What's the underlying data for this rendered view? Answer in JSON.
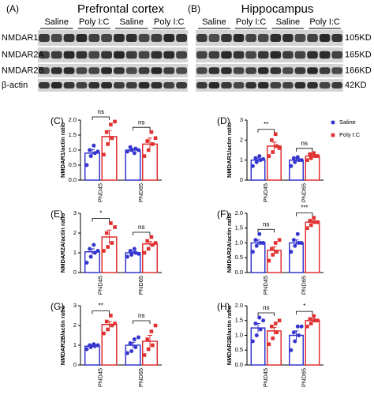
{
  "blot": {
    "panels": [
      {
        "label": "(A)",
        "title": "Prefrontal cortex",
        "groups": [
          "Saline",
          "Poly I:C",
          "Saline",
          "Poly I:C"
        ]
      },
      {
        "label": "(B)",
        "title": "Hippocampus",
        "groups": [
          "Saline",
          "Poly I:C",
          "Saline",
          "Poly I:C"
        ]
      }
    ],
    "proteins": [
      "NMDAR1",
      "NMDAR2A",
      "NMDAR2B",
      "β-actin"
    ],
    "sizes": [
      "105KD",
      "165KD",
      "166KD",
      "42KD"
    ]
  },
  "chart_data": [
    {
      "type": "bar",
      "panel": "(C)",
      "ylabel": "NMDAR1/actin ratio",
      "categories": [
        "PND45",
        "PND65"
      ],
      "series": [
        {
          "color": "#3535d0",
          "marker": "circle",
          "values": [
            0.9,
            1.0
          ],
          "errors": [
            0.12,
            0.05
          ],
          "points": [
            [
              0.5,
              0.8,
              0.9,
              1.0,
              1.15,
              0.95
            ],
            [
              0.95,
              1.0,
              1.05,
              1.1,
              0.9,
              1.0
            ]
          ]
        },
        {
          "color": "#e03030",
          "marker": "square",
          "values": [
            1.45,
            1.2
          ],
          "errors": [
            0.2,
            0.2
          ],
          "points": [
            [
              0.85,
              1.2,
              1.4,
              1.6,
              1.85,
              1.95
            ],
            [
              0.8,
              1.0,
              1.2,
              1.3,
              1.6,
              1.4
            ]
          ]
        }
      ],
      "annotations": [
        "ns",
        "ns"
      ],
      "ylim": [
        0,
        2
      ],
      "yticks": [
        {
          "value": 0,
          "label": "0.0"
        },
        0.5,
        {
          "value": 1,
          "label": "1.0"
        },
        1.5,
        {
          "value": 2,
          "label": "2.0"
        }
      ]
    },
    {
      "type": "bar",
      "panel": "(D)",
      "ylabel": "NMDAR1/actin ratio",
      "categories": [
        "PND45",
        "PND65"
      ],
      "series": [
        {
          "name": "Saline",
          "color": "#3535d0",
          "marker": "circle",
          "values": [
            1.0,
            1.0
          ],
          "errors": [
            0.1,
            0.1
          ],
          "points": [
            [
              0.7,
              0.9,
              1.0,
              1.1,
              1.2,
              1.05
            ],
            [
              0.7,
              0.9,
              1.0,
              1.1,
              1.15,
              1.0
            ]
          ]
        },
        {
          "name": "Poly I:C",
          "color": "#e03030",
          "marker": "square",
          "values": [
            1.7,
            1.2
          ],
          "errors": [
            0.2,
            0.1
          ],
          "points": [
            [
              1.2,
              1.4,
              1.7,
              2.0,
              2.3,
              1.6
            ],
            [
              1.0,
              1.1,
              1.2,
              1.3,
              1.35,
              1.2
            ]
          ]
        }
      ],
      "annotations": [
        "**",
        "ns"
      ],
      "ylim": [
        0,
        3
      ],
      "yticks": [
        0,
        1,
        2,
        3
      ],
      "legend": true
    },
    {
      "type": "bar",
      "panel": "(E)",
      "ylabel": "NMDAR2A/actin ratio",
      "categories": [
        "PND45",
        "PND65"
      ],
      "series": [
        {
          "color": "#3535d0",
          "marker": "circle",
          "values": [
            1.05,
            1.0
          ],
          "errors": [
            0.15,
            0.07
          ],
          "points": [
            [
              0.5,
              0.8,
              1.0,
              1.2,
              1.4,
              1.1
            ],
            [
              0.8,
              0.9,
              1.0,
              1.1,
              1.2,
              0.95
            ]
          ]
        },
        {
          "color": "#e03030",
          "marker": "square",
          "values": [
            1.8,
            1.45
          ],
          "errors": [
            0.35,
            0.12
          ],
          "points": [
            [
              1.1,
              1.3,
              1.5,
              2.0,
              2.5,
              2.3
            ],
            [
              1.0,
              1.2,
              1.4,
              1.6,
              1.8,
              1.5
            ]
          ]
        }
      ],
      "annotations": [
        "*",
        "ns"
      ],
      "ylim": [
        0,
        3
      ],
      "yticks": [
        0,
        1,
        2,
        3
      ]
    },
    {
      "type": "bar",
      "panel": "(F)",
      "ylabel": "NMDAR2A/actin ratio",
      "categories": [
        "PND45",
        "PND65"
      ],
      "series": [
        {
          "color": "#3535d0",
          "marker": "circle",
          "values": [
            1.0,
            1.0
          ],
          "errors": [
            0.1,
            0.1
          ],
          "points": [
            [
              0.7,
              0.9,
              1.0,
              1.1,
              1.3,
              1.0
            ],
            [
              0.7,
              0.9,
              1.0,
              1.1,
              1.3,
              1.0
            ]
          ]
        },
        {
          "color": "#e03030",
          "marker": "square",
          "values": [
            0.75,
            1.7
          ],
          "errors": [
            0.12,
            0.06
          ],
          "points": [
            [
              0.4,
              0.6,
              0.7,
              0.8,
              1.0,
              1.1
            ],
            [
              1.5,
              1.6,
              1.7,
              1.75,
              1.85,
              1.7
            ]
          ]
        }
      ],
      "annotations": [
        "ns",
        "***"
      ],
      "ylim": [
        0,
        2
      ],
      "yticks": [
        {
          "value": 0,
          "label": "0.0"
        },
        0.5,
        {
          "value": 1,
          "label": "1.0"
        },
        1.5,
        {
          "value": 2,
          "label": "2.0"
        }
      ]
    },
    {
      "type": "bar",
      "panel": "(G)",
      "ylabel": "NMDAR2B/actin ratio",
      "categories": [
        "PND45",
        "PND65"
      ],
      "series": [
        {
          "color": "#3535d0",
          "marker": "circle",
          "values": [
            0.95,
            1.0
          ],
          "errors": [
            0.05,
            0.15
          ],
          "points": [
            [
              0.8,
              0.9,
              0.95,
              1.0,
              1.05,
              1.0
            ],
            [
              0.6,
              0.7,
              0.9,
              1.1,
              1.3,
              1.4
            ]
          ]
        },
        {
          "color": "#e03030",
          "marker": "square",
          "values": [
            2.05,
            1.2
          ],
          "errors": [
            0.15,
            0.3
          ],
          "points": [
            [
              1.6,
              1.8,
              2.0,
              2.2,
              2.5,
              2.1
            ],
            [
              0.5,
              0.8,
              1.0,
              1.3,
              1.7,
              2.0
            ]
          ]
        }
      ],
      "annotations": [
        "**",
        "ns"
      ],
      "ylim": [
        0,
        3
      ],
      "yticks": [
        0,
        1,
        2,
        3
      ]
    },
    {
      "type": "bar",
      "panel": "(H)",
      "ylabel": "NMDAR2B/actin ratio",
      "categories": [
        "PND45",
        "PND65"
      ],
      "series": [
        {
          "color": "#3535d0",
          "marker": "circle",
          "values": [
            1.25,
            1.0
          ],
          "errors": [
            0.15,
            0.15
          ],
          "points": [
            [
              0.8,
              1.0,
              1.2,
              1.4,
              1.6,
              1.5
            ],
            [
              0.5,
              0.8,
              1.0,
              1.1,
              1.3,
              1.3
            ]
          ]
        },
        {
          "color": "#e03030",
          "marker": "square",
          "values": [
            1.15,
            1.5
          ],
          "errors": [
            0.12,
            0.06
          ],
          "points": [
            [
              0.7,
              0.9,
              1.1,
              1.3,
              1.4,
              1.5
            ],
            [
              1.3,
              1.4,
              1.5,
              1.55,
              1.65,
              1.5
            ]
          ]
        }
      ],
      "annotations": [
        "ns",
        "*"
      ],
      "ylim": [
        0,
        2
      ],
      "yticks": [
        {
          "value": 0,
          "label": "0.0"
        },
        0.5,
        {
          "value": 1,
          "label": "1.0"
        },
        1.5,
        {
          "value": 2,
          "label": "2.0"
        }
      ]
    }
  ]
}
